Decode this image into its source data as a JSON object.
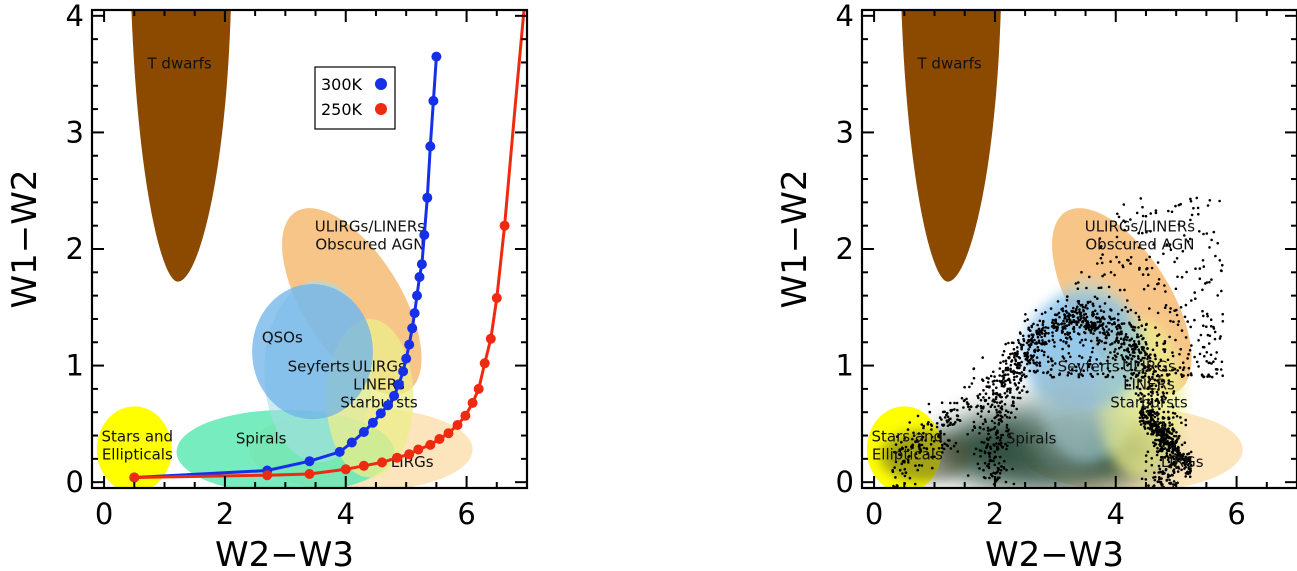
{
  "chart_data": [
    {
      "type": "scatter",
      "xlabel": "W2−W3",
      "ylabel": "W1−W2",
      "xlim": [
        -0.2,
        7.0
      ],
      "ylim": [
        -0.05,
        4.05
      ],
      "xticks": [
        "0",
        "2",
        "4",
        "6"
      ],
      "yticks": [
        "0",
        "1",
        "2",
        "3",
        "4"
      ],
      "regions": [
        {
          "label": "T dwarfs",
          "color": "#8b4a00"
        },
        {
          "label": "ULIRGs/LINERs\nObscured AGN",
          "color": "#f6b66c"
        },
        {
          "label": "QSOs",
          "color": "#6fb3ea"
        },
        {
          "label": "Seyferts",
          "color": "#a9dde6"
        },
        {
          "label": "ULIRGs\nLINERs\nStarbursts",
          "color": "#ecee8a"
        },
        {
          "label": "Spirals",
          "color": "#5fe9b4"
        },
        {
          "label": "LIRGs",
          "color": "#fce0b0"
        },
        {
          "label": "Stars and\nEllipticals",
          "color": "#ffff00"
        }
      ],
      "legend": {
        "placement": "upper-middle",
        "entries": [
          {
            "label": "300K",
            "color": "#1530e6"
          },
          {
            "label": "250K",
            "color": "#ee2a10"
          }
        ]
      },
      "series": [
        {
          "name": "300K",
          "color": "#1530e6",
          "x": [
            0.5,
            2.7,
            3.4,
            3.9,
            4.1,
            4.3,
            4.45,
            4.58,
            4.7,
            4.8,
            4.88,
            4.95,
            5.0,
            5.05,
            5.1,
            5.14,
            5.18,
            5.22,
            5.26,
            5.3,
            5.35,
            5.4,
            5.45,
            5.5
          ],
          "y": [
            0.04,
            0.1,
            0.18,
            0.26,
            0.34,
            0.43,
            0.51,
            0.59,
            0.66,
            0.74,
            0.84,
            0.95,
            1.06,
            1.18,
            1.32,
            1.45,
            1.6,
            1.76,
            1.87,
            2.12,
            2.44,
            2.88,
            3.27,
            3.65
          ]
        },
        {
          "name": "250K",
          "color": "#ee2a10",
          "x": [
            0.5,
            2.7,
            3.4,
            4.0,
            4.3,
            4.6,
            4.85,
            5.05,
            5.2,
            5.4,
            5.55,
            5.7,
            5.85,
            5.98,
            6.1,
            6.2,
            6.3,
            6.4,
            6.5,
            6.63
          ],
          "y": [
            0.04,
            0.06,
            0.07,
            0.11,
            0.14,
            0.17,
            0.21,
            0.24,
            0.28,
            0.32,
            0.37,
            0.42,
            0.49,
            0.57,
            0.68,
            0.8,
            1.02,
            1.23,
            1.58,
            2.2
          ]
        }
      ]
    },
    {
      "type": "scatter",
      "xlabel": "W2−W3",
      "ylabel": "W1−W2",
      "xlim": [
        -0.2,
        7.0
      ],
      "ylim": [
        -0.05,
        4.05
      ],
      "xticks": [
        "0",
        "2",
        "4",
        "6"
      ],
      "yticks": [
        "0",
        "1",
        "2",
        "3",
        "4"
      ],
      "regions": [
        {
          "label": "T dwarfs",
          "color": "#8b4a00"
        },
        {
          "label": "ULIRGs/LINERs\nObscured AGN",
          "color": "#f6b66c"
        },
        {
          "label": "Seyferts",
          "color": "#a9dde6"
        },
        {
          "label": "ULIRGs\nLINERs\nStarbursts",
          "color": "#ecee8a"
        },
        {
          "label": "Spirals",
          "color": "#1f3f2e"
        },
        {
          "label": "LIRGs",
          "color": "#fce0b0"
        },
        {
          "label": "Stars and\nEllipticals",
          "color": "#ffff00"
        }
      ],
      "density_overlay": "black point cloud of sources tracing the AGN arc",
      "series": []
    }
  ]
}
